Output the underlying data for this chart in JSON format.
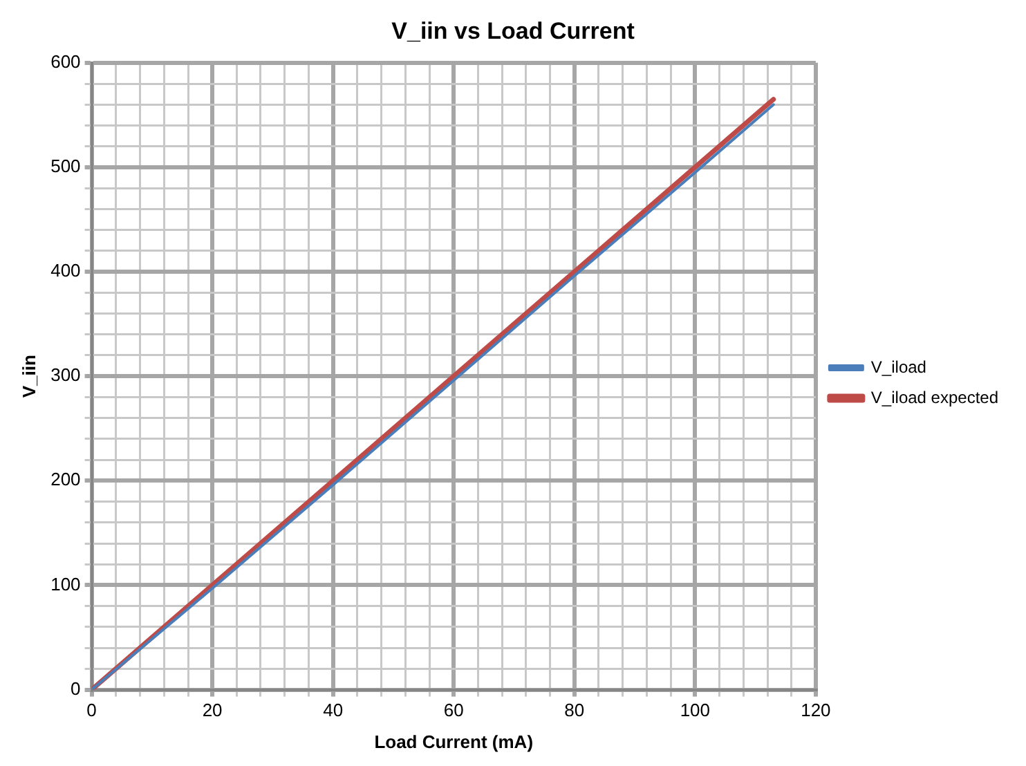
{
  "chart_data": {
    "type": "line",
    "title": "V_iin vs Load Current",
    "xlabel": "Load Current (mA)",
    "ylabel": "V_iin",
    "xlim": [
      0,
      120
    ],
    "ylim": [
      0,
      600
    ],
    "xticks": [
      0,
      {
        "value": 4,
        "label": null
      },
      {
        "value": 8,
        "label": null
      },
      {
        "value": 12,
        "label": null
      },
      {
        "value": 16,
        "label": null
      },
      20,
      {
        "value": 24,
        "label": null
      },
      {
        "value": 28,
        "label": null
      },
      {
        "value": 32,
        "label": null
      },
      {
        "value": 36,
        "label": null
      },
      40,
      {
        "value": 44,
        "label": null
      },
      {
        "value": 48,
        "label": null
      },
      {
        "value": 52,
        "label": null
      },
      {
        "value": 56,
        "label": null
      },
      60,
      {
        "value": 64,
        "label": null
      },
      {
        "value": 68,
        "label": null
      },
      {
        "value": 72,
        "label": null
      },
      {
        "value": 76,
        "label": null
      },
      80,
      {
        "value": 84,
        "label": null
      },
      {
        "value": 88,
        "label": null
      },
      {
        "value": 92,
        "label": null
      },
      {
        "value": 96,
        "label": null
      },
      100,
      {
        "value": 104,
        "label": null
      },
      {
        "value": 108,
        "label": null
      },
      {
        "value": 112,
        "label": null
      },
      {
        "value": 116,
        "label": null
      },
      120
    ],
    "yticks": [
      0,
      {
        "value": 20,
        "label": null
      },
      {
        "value": 40,
        "label": null
      },
      {
        "value": 60,
        "label": null
      },
      {
        "value": 80,
        "label": null
      },
      100,
      {
        "value": 120,
        "label": null
      },
      {
        "value": 140,
        "label": null
      },
      {
        "value": 160,
        "label": null
      },
      {
        "value": 180,
        "label": null
      },
      200,
      {
        "value": 220,
        "label": null
      },
      {
        "value": 240,
        "label": null
      },
      {
        "value": 260,
        "label": null
      },
      {
        "value": 280,
        "label": null
      },
      300,
      {
        "value": 320,
        "label": null
      },
      {
        "value": 340,
        "label": null
      },
      {
        "value": 360,
        "label": null
      },
      {
        "value": 380,
        "label": null
      },
      400,
      {
        "value": 420,
        "label": null
      },
      {
        "value": 440,
        "label": null
      },
      {
        "value": 460,
        "label": null
      },
      {
        "value": 480,
        "label": null
      },
      500,
      {
        "value": 520,
        "label": null
      },
      {
        "value": 540,
        "label": null
      },
      {
        "value": 560,
        "label": null
      },
      {
        "value": 580,
        "label": null
      },
      600
    ],
    "grid": true,
    "legend": "right",
    "marker": "none",
    "line_style": "solid",
    "series": [
      {
        "name": "V_iload",
        "color": "#4a7ebb",
        "x": [
          0,
          20,
          40,
          60,
          80,
          100,
          113
        ],
        "values": [
          0,
          97,
          196,
          296,
          396,
          495,
          560
        ]
      },
      {
        "name": "V_iload expected",
        "color": "#be4b48",
        "x": [
          0,
          20,
          40,
          60,
          80,
          100,
          113
        ],
        "values": [
          0,
          100,
          200,
          300,
          400,
          500,
          565
        ]
      }
    ]
  }
}
